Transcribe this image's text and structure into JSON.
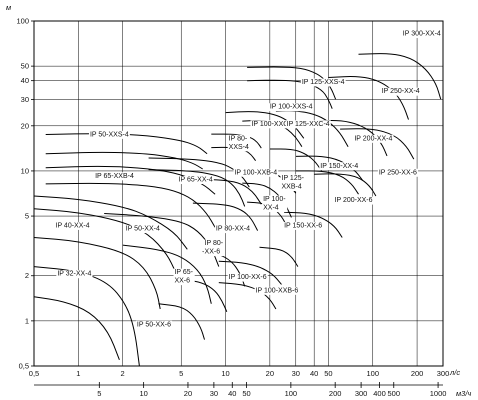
{
  "chart_data": {
    "type": "line",
    "title": "",
    "ylabel": "м",
    "xlabel_primary": "л/с",
    "xlabel_secondary": "м3/ч",
    "x_scale": "log",
    "y_scale": "log",
    "xlim": [
      0.5,
      300
    ],
    "ylim": [
      0.5,
      100
    ],
    "grid": true,
    "y_ticks": [
      "0,5",
      "1",
      "2",
      "5",
      "10",
      "20",
      "30",
      "40",
      "50",
      "100"
    ],
    "x_ticks_ls": [
      "0,5",
      "1",
      "2",
      "5",
      "10",
      "20",
      "30",
      "40",
      "50",
      "100",
      "200",
      "300"
    ],
    "x_ticks_m3h": [
      "5",
      "10",
      "20",
      "30",
      "40",
      "50",
      "100",
      "200",
      "300",
      "400",
      "500",
      "1000"
    ],
    "regions": [
      {
        "name": "IP 300-XX-4",
        "label": "IP 300-XX-4"
      },
      {
        "name": "IP 125-XXS-4",
        "label": "IP 125-XXS-4"
      },
      {
        "name": "IP 250-XX-4",
        "label": "IP 250-XX-4"
      },
      {
        "name": "IP 100-XXS-4",
        "label": "IP 100-XXS-4"
      },
      {
        "name": "IP 50-XXS-4",
        "label": "IP 50-XXS-4"
      },
      {
        "name": "IP 100-XXC-4",
        "label": "IP 100-XXC-4"
      },
      {
        "name": "IP 125-XXC-4",
        "label": "IP 125-XXC-4"
      },
      {
        "name": "IP 80-XXS-4",
        "label": "IP 80-\nXXS-4"
      },
      {
        "name": "IP 200-XX-4",
        "label": "IP 200-XX-4"
      },
      {
        "name": "IP 65-XXB-4",
        "label": "IP 65-XXB-4"
      },
      {
        "name": "IP 65-XX-4",
        "label": "IP 65-XX-4"
      },
      {
        "name": "IP 100-XXB-4",
        "label": "IP 100-XXB-4"
      },
      {
        "name": "IP 125-XXB-4",
        "label": "IP 125-\nXXB-4"
      },
      {
        "name": "IP 150-XX-4",
        "label": "IP 150-XX-4"
      },
      {
        "name": "IP 250-XX-6",
        "label": "IP 250-XX-6"
      },
      {
        "name": "IP 200-XX-6",
        "label": "IP 200-XX-6"
      },
      {
        "name": "IP 100-XX-4",
        "label": "IP 100-\nXX-4"
      },
      {
        "name": "IP 40-XX-4",
        "label": "IP 40-XX-4"
      },
      {
        "name": "IP 50-XX-4",
        "label": "IP 50-XX-4"
      },
      {
        "name": "IP 80-XX-4",
        "label": "IP 80-XX-4"
      },
      {
        "name": "IP 150-XX-6",
        "label": "IP 150-XX-6"
      },
      {
        "name": "IP 80-XX-6",
        "label": "IP 80-\nXX-6"
      },
      {
        "name": "IP 32-XX-4",
        "label": "IP 32-XX-4"
      },
      {
        "name": "IP 65-XX-6",
        "label": "IP 65-\nXX-6"
      },
      {
        "name": "IP 100-XX-6",
        "label": "IP 100-XX-6"
      },
      {
        "name": "IP 100-XXB-6",
        "label": "IP 100-XXB-6"
      },
      {
        "name": "IP 50-XX-6",
        "label": "IP 50-XX-6"
      }
    ],
    "curves": [
      {
        "region": "IP 32-XX-4",
        "points": [
          [
            0.5,
            1.45
          ],
          [
            0.8,
            1.35
          ],
          [
            1.2,
            1.15
          ],
          [
            1.6,
            0.85
          ],
          [
            1.9,
            0.55
          ]
        ]
      },
      {
        "region": "IP 32-XX-4",
        "points": [
          [
            0.5,
            2.3
          ],
          [
            1,
            2.15
          ],
          [
            1.6,
            1.8
          ],
          [
            2.1,
            1.3
          ],
          [
            2.4,
            0.9
          ],
          [
            2.6,
            0.5
          ]
        ]
      },
      {
        "region": "IP 40-XX-4",
        "points": [
          [
            0.5,
            3.6
          ],
          [
            1,
            3.4
          ],
          [
            2,
            2.9
          ],
          [
            2.8,
            2.3
          ],
          [
            3.4,
            1.6
          ],
          [
            3.6,
            1.2
          ]
        ]
      },
      {
        "region": "IP 40-XX-4",
        "points": [
          [
            0.5,
            5.6
          ],
          [
            1,
            5.3
          ],
          [
            2,
            4.6
          ],
          [
            3,
            3.8
          ],
          [
            4,
            2.8
          ],
          [
            4.6,
            2.1
          ]
        ]
      },
      {
        "region": "IP 40-XX-4",
        "points": [
          [
            0.5,
            6.8
          ],
          [
            1,
            6.5
          ],
          [
            2,
            5.8
          ],
          [
            3,
            5
          ],
          [
            4.5,
            3.9
          ],
          [
            5.5,
            3
          ]
        ]
      },
      {
        "region": "IP 50-XX-4",
        "points": [
          [
            2,
            3.2
          ],
          [
            3.5,
            3.0
          ],
          [
            5,
            2.7
          ],
          [
            6.5,
            2.2
          ],
          [
            7.5,
            1.7
          ],
          [
            8,
            1.3
          ]
        ]
      },
      {
        "region": "IP 50-XX-4",
        "points": [
          [
            1.5,
            5.2
          ],
          [
            3,
            5.0
          ],
          [
            5,
            4.6
          ],
          [
            6.5,
            4.0
          ],
          [
            8,
            3.1
          ],
          [
            9,
            2.3
          ]
        ]
      },
      {
        "region": "IP 65-XXB-4",
        "points": [
          [
            0.6,
            8.2
          ],
          [
            1.5,
            8.3
          ],
          [
            3,
            8.0
          ],
          [
            4.5,
            7.4
          ],
          [
            6,
            6.5
          ],
          [
            7.5,
            5.2
          ],
          [
            8.5,
            4.2
          ]
        ]
      },
      {
        "region": "IP 65-XXB-4",
        "points": [
          [
            0.6,
            10.5
          ],
          [
            1.5,
            10.8
          ],
          [
            3,
            10.4
          ],
          [
            5,
            9.5
          ],
          [
            7,
            8.2
          ],
          [
            8.5,
            7
          ]
        ]
      },
      {
        "region": "IP 50-XXS-4",
        "points": [
          [
            0.6,
            13
          ],
          [
            1.5,
            13.4
          ],
          [
            3,
            13
          ],
          [
            4.5,
            12.3
          ],
          [
            6,
            11.3
          ],
          [
            7,
            10.3
          ]
        ]
      },
      {
        "region": "IP 50-XXS-4",
        "points": [
          [
            0.6,
            17.5
          ],
          [
            1.5,
            17.8
          ],
          [
            3,
            17.2
          ],
          [
            5,
            16
          ],
          [
            6.5,
            14.6
          ],
          [
            7.5,
            13
          ]
        ]
      },
      {
        "region": "IP 65-XX-4",
        "points": [
          [
            3,
            10.2
          ],
          [
            6,
            10.0
          ],
          [
            9,
            9.3
          ],
          [
            11,
            8.3
          ],
          [
            12.5,
            7
          ],
          [
            13.5,
            5.8
          ]
        ]
      },
      {
        "region": "IP 65-XX-4",
        "points": [
          [
            3,
            12.2
          ],
          [
            6,
            12.0
          ],
          [
            9,
            11.4
          ],
          [
            11,
            10.5
          ],
          [
            13,
            9.2
          ],
          [
            14.5,
            7.8
          ]
        ]
      },
      {
        "region": "IP 65-XX-6",
        "points": [
          [
            5,
            1.9
          ],
          [
            7,
            1.8
          ],
          [
            8.5,
            1.6
          ],
          [
            9.5,
            1.35
          ],
          [
            10.2,
            1.15
          ]
        ]
      },
      {
        "region": "IP 50-XX-6",
        "points": [
          [
            3.5,
            1.3
          ],
          [
            5,
            1.25
          ],
          [
            6,
            1.1
          ],
          [
            6.8,
            0.9
          ],
          [
            7.2,
            0.75
          ]
        ]
      },
      {
        "region": "IP 80-XX-6",
        "points": [
          [
            7,
            2.9
          ],
          [
            9,
            2.8
          ],
          [
            11,
            2.5
          ],
          [
            12.5,
            2.1
          ],
          [
            13.5,
            1.7
          ]
        ]
      },
      {
        "region": "IP 80-XX-4",
        "points": [
          [
            6,
            6.1
          ],
          [
            10,
            6.0
          ],
          [
            13,
            5.5
          ],
          [
            15,
            4.8
          ],
          [
            16.5,
            4
          ]
        ]
      },
      {
        "region": "IP 80-XX-4",
        "points": [
          [
            6,
            8.8
          ],
          [
            10,
            8.7
          ],
          [
            13,
            8.2
          ],
          [
            15.5,
            7.2
          ],
          [
            17.5,
            6
          ]
        ]
      },
      {
        "region": "IP 80-XXS-4",
        "points": [
          [
            8,
            17.6
          ],
          [
            12,
            17.6
          ],
          [
            15,
            16.7
          ],
          [
            16.5,
            15.5
          ],
          [
            17.5,
            14.2
          ]
        ]
      },
      {
        "region": "IP 80-XXS-4",
        "points": [
          [
            8,
            14.3
          ],
          [
            11,
            14.4
          ],
          [
            13.5,
            13.8
          ],
          [
            15,
            12.8
          ],
          [
            16,
            11.7
          ]
        ]
      },
      {
        "region": "IP 100-XX-6",
        "points": [
          [
            9,
            1.8
          ],
          [
            13,
            1.75
          ],
          [
            17,
            1.6
          ],
          [
            20,
            1.4
          ],
          [
            22,
            1.2
          ]
        ]
      },
      {
        "region": "IP 100-XX-6",
        "points": [
          [
            9,
            2.5
          ],
          [
            13,
            2.45
          ],
          [
            17,
            2.3
          ],
          [
            21,
            2.05
          ],
          [
            24,
            1.75
          ]
        ]
      },
      {
        "region": "IP 100-XXB-6",
        "points": [
          [
            17,
            3.1
          ],
          [
            24,
            3.0
          ],
          [
            28,
            2.7
          ],
          [
            31,
            2.3
          ]
        ]
      },
      {
        "region": "IP 100-XXS-4",
        "points": [
          [
            10,
            24.5
          ],
          [
            15,
            25
          ],
          [
            20,
            24.3
          ],
          [
            25,
            22.5
          ],
          [
            30,
            19.5
          ],
          [
            34,
            16.5
          ]
        ]
      },
      {
        "region": "IP 100-XXC-4",
        "points": [
          [
            13,
            21.5
          ],
          [
            18,
            21.8
          ],
          [
            22,
            21
          ],
          [
            26,
            19.2
          ],
          [
            30,
            16.8
          ],
          [
            33,
            14.5
          ]
        ]
      },
      {
        "region": "IP 100-XXB-4",
        "points": [
          [
            14,
            10.2
          ],
          [
            18,
            10.1
          ],
          [
            22,
            9.6
          ],
          [
            26,
            8.5
          ],
          [
            30,
            7.1
          ]
        ]
      },
      {
        "region": "IP 100-XX-4",
        "points": [
          [
            13,
            8.3
          ],
          [
            17,
            8.2
          ],
          [
            20,
            7.7
          ],
          [
            23,
            6.9
          ],
          [
            26,
            5.8
          ],
          [
            28,
            4.9
          ]
        ]
      },
      {
        "region": "IP 100-XX-4",
        "points": [
          [
            14,
            6.2
          ],
          [
            18,
            6.1
          ],
          [
            21,
            5.7
          ],
          [
            24,
            5.0
          ],
          [
            26,
            4.3
          ]
        ]
      },
      {
        "region": "IP 125-XXS-4",
        "points": [
          [
            14,
            49
          ],
          [
            25,
            49.5
          ],
          [
            35,
            48
          ],
          [
            45,
            43
          ],
          [
            52,
            36
          ],
          [
            56,
            30
          ]
        ]
      },
      {
        "region": "IP 125-XXS-4",
        "points": [
          [
            14,
            40
          ],
          [
            25,
            40.5
          ],
          [
            35,
            39
          ],
          [
            45,
            35
          ],
          [
            50,
            30
          ],
          [
            53,
            26
          ]
        ]
      },
      {
        "region": "IP 125-XXC-4",
        "points": [
          [
            22,
            25
          ],
          [
            30,
            25.3
          ],
          [
            40,
            24
          ],
          [
            50,
            21.5
          ],
          [
            60,
            18
          ],
          [
            68,
            14.5
          ]
        ]
      },
      {
        "region": "IP 125-XXB-4",
        "points": [
          [
            20,
            14
          ],
          [
            28,
            14
          ],
          [
            34,
            13.2
          ],
          [
            40,
            11.8
          ],
          [
            45,
            10
          ]
        ]
      },
      {
        "region": "IP 150-XX-6",
        "points": [
          [
            25,
            5.3
          ],
          [
            35,
            5.25
          ],
          [
            45,
            4.9
          ],
          [
            55,
            4.3
          ],
          [
            62,
            3.6
          ]
        ]
      },
      {
        "region": "IP 150-XX-4",
        "points": [
          [
            30,
            12.5
          ],
          [
            45,
            12.6
          ],
          [
            60,
            11.8
          ],
          [
            75,
            10.2
          ],
          [
            85,
            8.7
          ]
        ]
      },
      {
        "region": "IP 150-XX-4",
        "points": [
          [
            30,
            10
          ],
          [
            45,
            10
          ],
          [
            60,
            9.4
          ],
          [
            72,
            8.2
          ],
          [
            80,
            7
          ]
        ]
      },
      {
        "region": "IP 200-XX-4",
        "points": [
          [
            40,
            21.5
          ],
          [
            60,
            21.8
          ],
          [
            80,
            20.5
          ],
          [
            100,
            18
          ],
          [
            115,
            15.2
          ],
          [
            125,
            12.6
          ]
        ]
      },
      {
        "region": "IP 200-XX-6",
        "points": [
          [
            40,
            9.5
          ],
          [
            60,
            9.6
          ],
          [
            80,
            9.1
          ],
          [
            95,
            8.0
          ],
          [
            105,
            6.8
          ]
        ]
      },
      {
        "region": "IP 250-XX-4",
        "points": [
          [
            50,
            42
          ],
          [
            80,
            43
          ],
          [
            110,
            40
          ],
          [
            140,
            34
          ],
          [
            160,
            28
          ],
          [
            175,
            22
          ]
        ]
      },
      {
        "region": "IP 250-XX-6",
        "points": [
          [
            60,
            19
          ],
          [
            100,
            19.2
          ],
          [
            140,
            17.4
          ],
          [
            170,
            14.6
          ],
          [
            190,
            12
          ]
        ]
      },
      {
        "region": "IP 300-XX-4",
        "points": [
          [
            80,
            60
          ],
          [
            130,
            61
          ],
          [
            180,
            57
          ],
          [
            230,
            48
          ],
          [
            270,
            38
          ],
          [
            290,
            30
          ]
        ]
      }
    ]
  }
}
